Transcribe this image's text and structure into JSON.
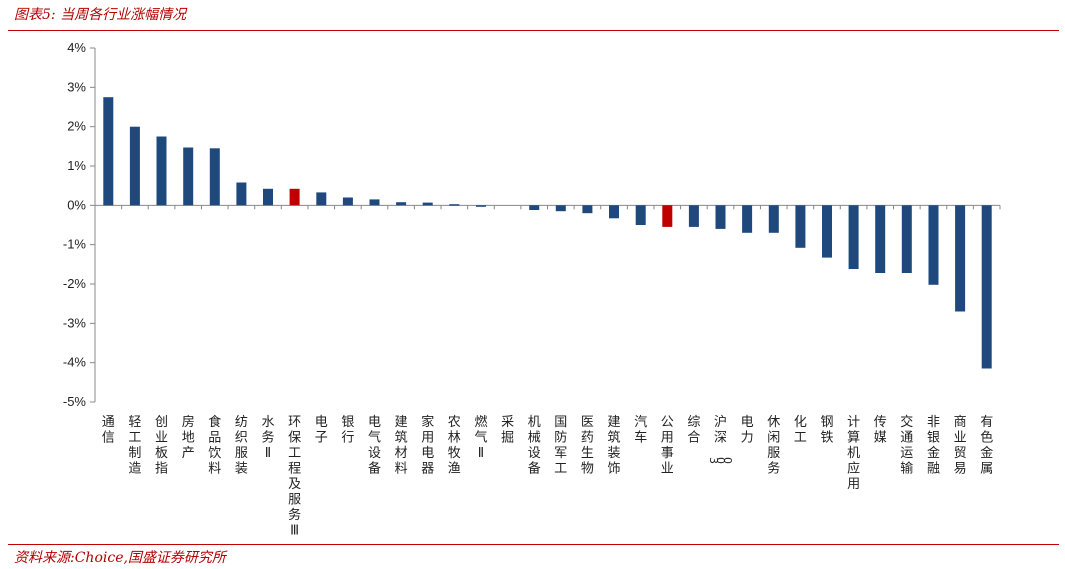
{
  "header": {
    "title": "图表5:  当周各行业涨幅情况"
  },
  "footer": {
    "source": "资料来源:Choice,国盛证券研究所"
  },
  "colors": {
    "bar": "#1f497d",
    "highlight": "#c00000",
    "axis": "#888888"
  },
  "chart_data": {
    "type": "bar",
    "title": "",
    "xlabel": "",
    "ylabel": "",
    "ylim": [
      -5,
      4
    ],
    "y_ticks": [
      "4%",
      "3%",
      "2%",
      "1%",
      "0%",
      "-1%",
      "-2%",
      "-3%",
      "-4%",
      "-5%"
    ],
    "unit": "%",
    "categories": [
      "通信",
      "轻工制造",
      "创业板指",
      "房地产",
      "食品饮料",
      "纺织服装",
      "水务Ⅱ",
      "环保工程及服务Ⅲ",
      "电子",
      "银行",
      "电气设备",
      "建筑材料",
      "家用电器",
      "农林牧渔",
      "燃气Ⅱ",
      "采掘",
      "机械设备",
      "国防军工",
      "医药生物",
      "建筑装饰",
      "汽车",
      "公用事业",
      "综合",
      "沪深300",
      "电力",
      "休闲服务",
      "化工",
      "钢铁",
      "计算机应用",
      "传媒",
      "交通运输",
      "非银金融",
      "商业贸易",
      "有色金属"
    ],
    "values": [
      2.75,
      2.0,
      1.75,
      1.47,
      1.45,
      0.58,
      0.42,
      0.42,
      0.33,
      0.2,
      0.15,
      0.08,
      0.07,
      0.03,
      -0.03,
      0.0,
      -0.12,
      -0.15,
      -0.2,
      -0.33,
      -0.5,
      -0.55,
      -0.55,
      -0.6,
      -0.7,
      -0.7,
      -1.08,
      -1.33,
      -1.62,
      -1.72,
      -1.72,
      -2.02,
      -2.7,
      -4.15
    ],
    "highlight": [
      "环保工程及服务Ⅲ",
      "公用事业"
    ]
  }
}
